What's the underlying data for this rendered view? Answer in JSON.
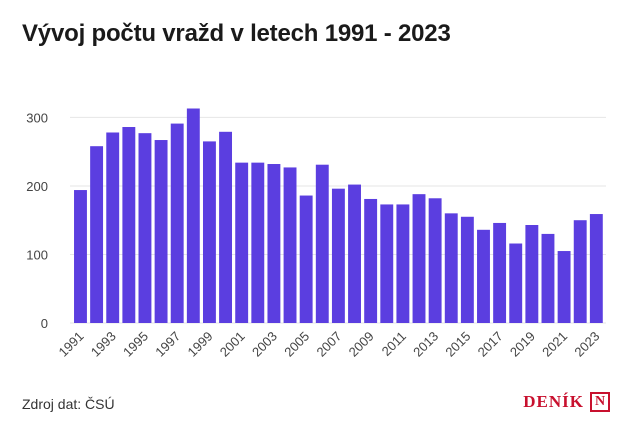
{
  "chart_data": {
    "type": "bar",
    "title": "Vývoj počtu vražd v letech 1991 - 2023",
    "categories": [
      "1991",
      "1992",
      "1993",
      "1994",
      "1995",
      "1996",
      "1997",
      "1998",
      "1999",
      "2000",
      "2001",
      "2002",
      "2003",
      "2004",
      "2005",
      "2006",
      "2007",
      "2008",
      "2009",
      "2010",
      "2011",
      "2012",
      "2013",
      "2014",
      "2015",
      "2016",
      "2017",
      "2018",
      "2019",
      "2020",
      "2021",
      "2022",
      "2023"
    ],
    "values": [
      194,
      258,
      278,
      286,
      277,
      267,
      291,
      313,
      265,
      279,
      234,
      234,
      232,
      227,
      186,
      231,
      196,
      202,
      181,
      173,
      173,
      188,
      182,
      160,
      155,
      136,
      146,
      116,
      143,
      130,
      105,
      150,
      159
    ],
    "tick_labels": [
      "1991",
      "1993",
      "1995",
      "1997",
      "1999",
      "2001",
      "2003",
      "2005",
      "2007",
      "2009",
      "2011",
      "2013",
      "2015",
      "2017",
      "2019",
      "2021",
      "2023"
    ],
    "yticks": [
      0,
      100,
      200,
      300
    ],
    "ylim": [
      0,
      340
    ],
    "xlabel": "",
    "ylabel": "",
    "grid": true,
    "legend": "none",
    "bar_color": "#5b3ee0"
  },
  "footer": {
    "source": "Zdroj dat: ČSÚ",
    "brand": "DENÍK",
    "brand_mark": "N"
  },
  "colors": {
    "brand": "#c8102e",
    "grid": "#e6e6e6"
  }
}
